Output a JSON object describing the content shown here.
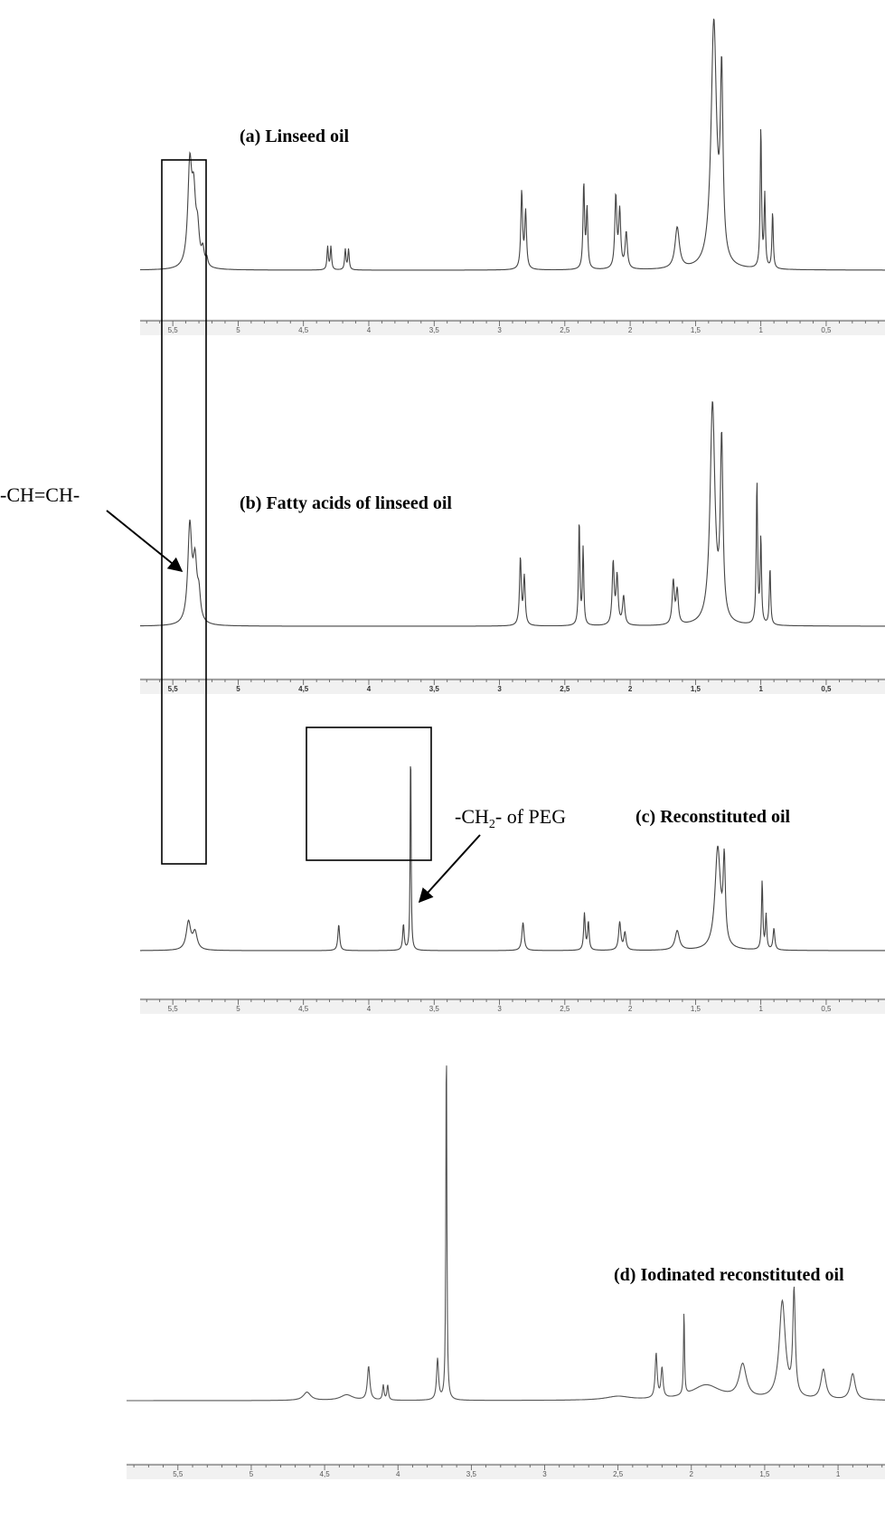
{
  "chart_data": [
    {
      "type": "line",
      "title": "(a) Linseed oil",
      "xlabel": "",
      "ylabel": "",
      "x_reversed": true,
      "xlim": [
        5.75,
        0.05
      ],
      "x_ticks": [
        "5,5",
        "5",
        "4,5",
        "4",
        "3,5",
        "3",
        "2,5",
        "2",
        "1,5",
        "1",
        "0,5"
      ],
      "x_tick_values": [
        5.5,
        5,
        4.5,
        4,
        3.5,
        3,
        2.5,
        2,
        1.5,
        1,
        0.5
      ],
      "grid": false,
      "peaks": [
        {
          "ppm": 5.37,
          "h": 0.38,
          "w": 0.018
        },
        {
          "ppm": 5.34,
          "h": 0.25,
          "w": 0.018
        },
        {
          "ppm": 5.31,
          "h": 0.12,
          "w": 0.015
        },
        {
          "ppm": 5.27,
          "h": 0.06,
          "w": 0.012
        },
        {
          "ppm": 5.24,
          "h": 0.03,
          "w": 0.01
        },
        {
          "ppm": 4.315,
          "h": 0.09,
          "w": 0.006
        },
        {
          "ppm": 4.29,
          "h": 0.09,
          "w": 0.006
        },
        {
          "ppm": 4.18,
          "h": 0.08,
          "w": 0.006
        },
        {
          "ppm": 4.155,
          "h": 0.08,
          "w": 0.006
        },
        {
          "ppm": 2.83,
          "h": 0.3,
          "w": 0.008
        },
        {
          "ppm": 2.8,
          "h": 0.22,
          "w": 0.008
        },
        {
          "ppm": 2.355,
          "h": 0.33,
          "w": 0.007
        },
        {
          "ppm": 2.33,
          "h": 0.23,
          "w": 0.007
        },
        {
          "ppm": 2.11,
          "h": 0.28,
          "w": 0.009
        },
        {
          "ppm": 2.08,
          "h": 0.22,
          "w": 0.009
        },
        {
          "ppm": 2.03,
          "h": 0.14,
          "w": 0.01
        },
        {
          "ppm": 1.64,
          "h": 0.16,
          "w": 0.02
        },
        {
          "ppm": 1.36,
          "h": 0.95,
          "w": 0.025
        },
        {
          "ppm": 1.3,
          "h": 0.7,
          "w": 0.012
        },
        {
          "ppm": 1.0,
          "h": 0.55,
          "w": 0.006
        },
        {
          "ppm": 0.97,
          "h": 0.28,
          "w": 0.006
        },
        {
          "ppm": 0.91,
          "h": 0.22,
          "w": 0.006
        }
      ]
    },
    {
      "type": "line",
      "title": "(b) Fatty acids of linseed oil",
      "xlabel": "",
      "ylabel": "",
      "x_reversed": true,
      "xlim": [
        5.75,
        0.05
      ],
      "x_ticks": [
        "5,5",
        "5",
        "4,5",
        "4",
        "3,5",
        "3",
        "2,5",
        "2",
        "1,5",
        "1",
        "0,5"
      ],
      "x_tick_values": [
        5.5,
        5,
        4.5,
        4,
        3.5,
        3,
        2.5,
        2,
        1.5,
        1,
        0.5
      ],
      "grid": false,
      "peaks": [
        {
          "ppm": 5.37,
          "h": 0.4,
          "w": 0.018
        },
        {
          "ppm": 5.33,
          "h": 0.24,
          "w": 0.018
        },
        {
          "ppm": 5.3,
          "h": 0.1,
          "w": 0.014
        },
        {
          "ppm": 2.84,
          "h": 0.28,
          "w": 0.008
        },
        {
          "ppm": 2.81,
          "h": 0.2,
          "w": 0.008
        },
        {
          "ppm": 2.39,
          "h": 0.44,
          "w": 0.006
        },
        {
          "ppm": 2.36,
          "h": 0.32,
          "w": 0.006
        },
        {
          "ppm": 2.13,
          "h": 0.26,
          "w": 0.009
        },
        {
          "ppm": 2.1,
          "h": 0.2,
          "w": 0.009
        },
        {
          "ppm": 2.05,
          "h": 0.12,
          "w": 0.01
        },
        {
          "ppm": 1.67,
          "h": 0.18,
          "w": 0.01
        },
        {
          "ppm": 1.64,
          "h": 0.14,
          "w": 0.01
        },
        {
          "ppm": 1.37,
          "h": 0.92,
          "w": 0.022
        },
        {
          "ppm": 1.3,
          "h": 0.74,
          "w": 0.012
        },
        {
          "ppm": 1.03,
          "h": 0.6,
          "w": 0.006
        },
        {
          "ppm": 1.0,
          "h": 0.36,
          "w": 0.006
        },
        {
          "ppm": 0.93,
          "h": 0.24,
          "w": 0.006
        }
      ]
    },
    {
      "type": "line",
      "title": "(c) Reconstituted oil",
      "xlabel": "",
      "ylabel": "",
      "x_reversed": true,
      "xlim": [
        5.75,
        0.05
      ],
      "x_ticks": [
        "5,5",
        "5",
        "4,5",
        "4",
        "3,5",
        "3",
        "2,5",
        "2",
        "1,5",
        "1",
        "0,5"
      ],
      "x_tick_values": [
        5.5,
        5,
        4.5,
        4,
        3.5,
        3,
        2.5,
        2,
        1.5,
        1,
        0.5
      ],
      "grid": false,
      "peaks": [
        {
          "ppm": 5.38,
          "h": 0.13,
          "w": 0.02
        },
        {
          "ppm": 5.33,
          "h": 0.08,
          "w": 0.02
        },
        {
          "ppm": 4.23,
          "h": 0.12,
          "w": 0.008
        },
        {
          "ppm": 3.735,
          "h": 0.12,
          "w": 0.007
        },
        {
          "ppm": 3.68,
          "h": 1.0,
          "w": 0.004
        },
        {
          "ppm": 2.82,
          "h": 0.13,
          "w": 0.01
        },
        {
          "ppm": 2.35,
          "h": 0.17,
          "w": 0.007
        },
        {
          "ppm": 2.32,
          "h": 0.13,
          "w": 0.007
        },
        {
          "ppm": 2.08,
          "h": 0.13,
          "w": 0.01
        },
        {
          "ppm": 2.04,
          "h": 0.08,
          "w": 0.01
        },
        {
          "ppm": 1.64,
          "h": 0.09,
          "w": 0.02
        },
        {
          "ppm": 1.33,
          "h": 0.47,
          "w": 0.025
        },
        {
          "ppm": 1.28,
          "h": 0.38,
          "w": 0.01
        },
        {
          "ppm": 0.99,
          "h": 0.32,
          "w": 0.006
        },
        {
          "ppm": 0.96,
          "h": 0.16,
          "w": 0.006
        },
        {
          "ppm": 0.9,
          "h": 0.1,
          "w": 0.008
        }
      ]
    },
    {
      "type": "line",
      "title": "(d) Iodinated reconstituted oil",
      "xlabel": "",
      "ylabel": "",
      "x_reversed": true,
      "xlim": [
        5.85,
        0.68
      ],
      "x_ticks": [
        "5,5",
        "5",
        "4,5",
        "4",
        "3,5",
        "3",
        "2,5",
        "2",
        "1,5",
        "1"
      ],
      "x_tick_values": [
        5.5,
        5,
        4.5,
        4,
        3.5,
        3,
        2.5,
        2,
        1.5,
        1
      ],
      "grid": false,
      "peaks": [
        {
          "ppm": 4.62,
          "h": 0.022,
          "w": 0.03
        },
        {
          "ppm": 4.35,
          "h": 0.015,
          "w": 0.05
        },
        {
          "ppm": 4.2,
          "h": 0.09,
          "w": 0.01
        },
        {
          "ppm": 4.1,
          "h": 0.04,
          "w": 0.006
        },
        {
          "ppm": 4.07,
          "h": 0.04,
          "w": 0.006
        },
        {
          "ppm": 3.73,
          "h": 0.11,
          "w": 0.008
        },
        {
          "ppm": 3.67,
          "h": 1.0,
          "w": 0.004
        },
        {
          "ppm": 2.5,
          "h": 0.01,
          "w": 0.1
        },
        {
          "ppm": 2.24,
          "h": 0.12,
          "w": 0.008
        },
        {
          "ppm": 2.2,
          "h": 0.08,
          "w": 0.008
        },
        {
          "ppm": 2.05,
          "h": 0.23,
          "w": 0.004
        },
        {
          "ppm": 1.9,
          "h": 0.04,
          "w": 0.12
        },
        {
          "ppm": 1.65,
          "h": 0.09,
          "w": 0.03
        },
        {
          "ppm": 1.38,
          "h": 0.26,
          "w": 0.025
        },
        {
          "ppm": 1.3,
          "h": 0.28,
          "w": 0.01
        },
        {
          "ppm": 1.1,
          "h": 0.08,
          "w": 0.02
        },
        {
          "ppm": 0.9,
          "h": 0.07,
          "w": 0.02
        }
      ]
    }
  ],
  "annotations": {
    "double_bond": "-CH=CH-",
    "peg_prefix": "-CH",
    "peg_subscript": "2",
    "peg_suffix": "- of PEG"
  }
}
